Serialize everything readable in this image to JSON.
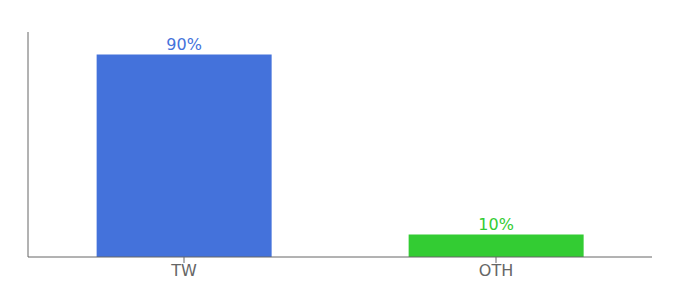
{
  "chart_data": {
    "type": "bar",
    "categories": [
      "TW",
      "OTH"
    ],
    "values": [
      90,
      10
    ],
    "colors": [
      "#4472db",
      "#33cc33"
    ],
    "value_labels": [
      "90%",
      "10%"
    ],
    "data_labels": true,
    "ylim": [
      0,
      100
    ],
    "tick_labels": "x",
    "grid": false
  }
}
